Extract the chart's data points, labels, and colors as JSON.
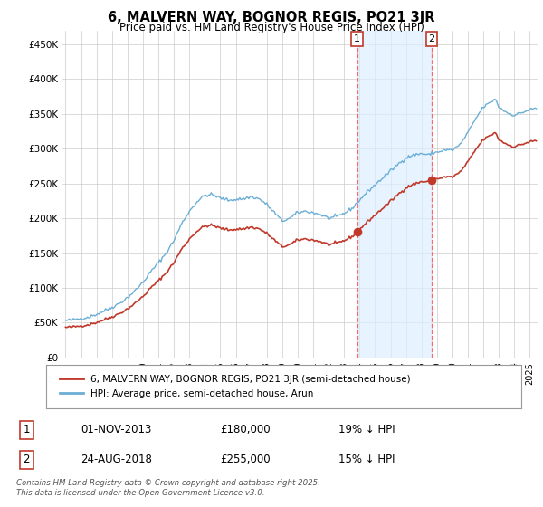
{
  "title": "6, MALVERN WAY, BOGNOR REGIS, PO21 3JR",
  "subtitle": "Price paid vs. HM Land Registry's House Price Index (HPI)",
  "ylabel_ticks": [
    "£0",
    "£50K",
    "£100K",
    "£150K",
    "£200K",
    "£250K",
    "£300K",
    "£350K",
    "£400K",
    "£450K"
  ],
  "ytick_values": [
    0,
    50000,
    100000,
    150000,
    200000,
    250000,
    300000,
    350000,
    400000,
    450000
  ],
  "ylim": [
    0,
    470000
  ],
  "xlim_start": 1994.8,
  "xlim_end": 2025.5,
  "hpi_color": "#6baed6",
  "price_color": "#c0392b",
  "marker1_x": 2013.84,
  "marker1_y": 180000,
  "marker2_x": 2018.65,
  "marker2_y": 255000,
  "vline1_x": 2013.84,
  "vline2_x": 2018.65,
  "shade_xstart": 2013.84,
  "shade_xend": 2018.65,
  "legend_label1": "6, MALVERN WAY, BOGNOR REGIS, PO21 3JR (semi-detached house)",
  "legend_label2": "HPI: Average price, semi-detached house, Arun",
  "table_row1": [
    "1",
    "01-NOV-2013",
    "£180,000",
    "19% ↓ HPI"
  ],
  "table_row2": [
    "2",
    "24-AUG-2018",
    "£255,000",
    "15% ↓ HPI"
  ],
  "footer": "Contains HM Land Registry data © Crown copyright and database right 2025.\nThis data is licensed under the Open Government Licence v3.0.",
  "background_color": "#ffffff",
  "shade_color": "#ddeeff",
  "grid_color": "#cccccc",
  "vline_color": "#ff6666"
}
